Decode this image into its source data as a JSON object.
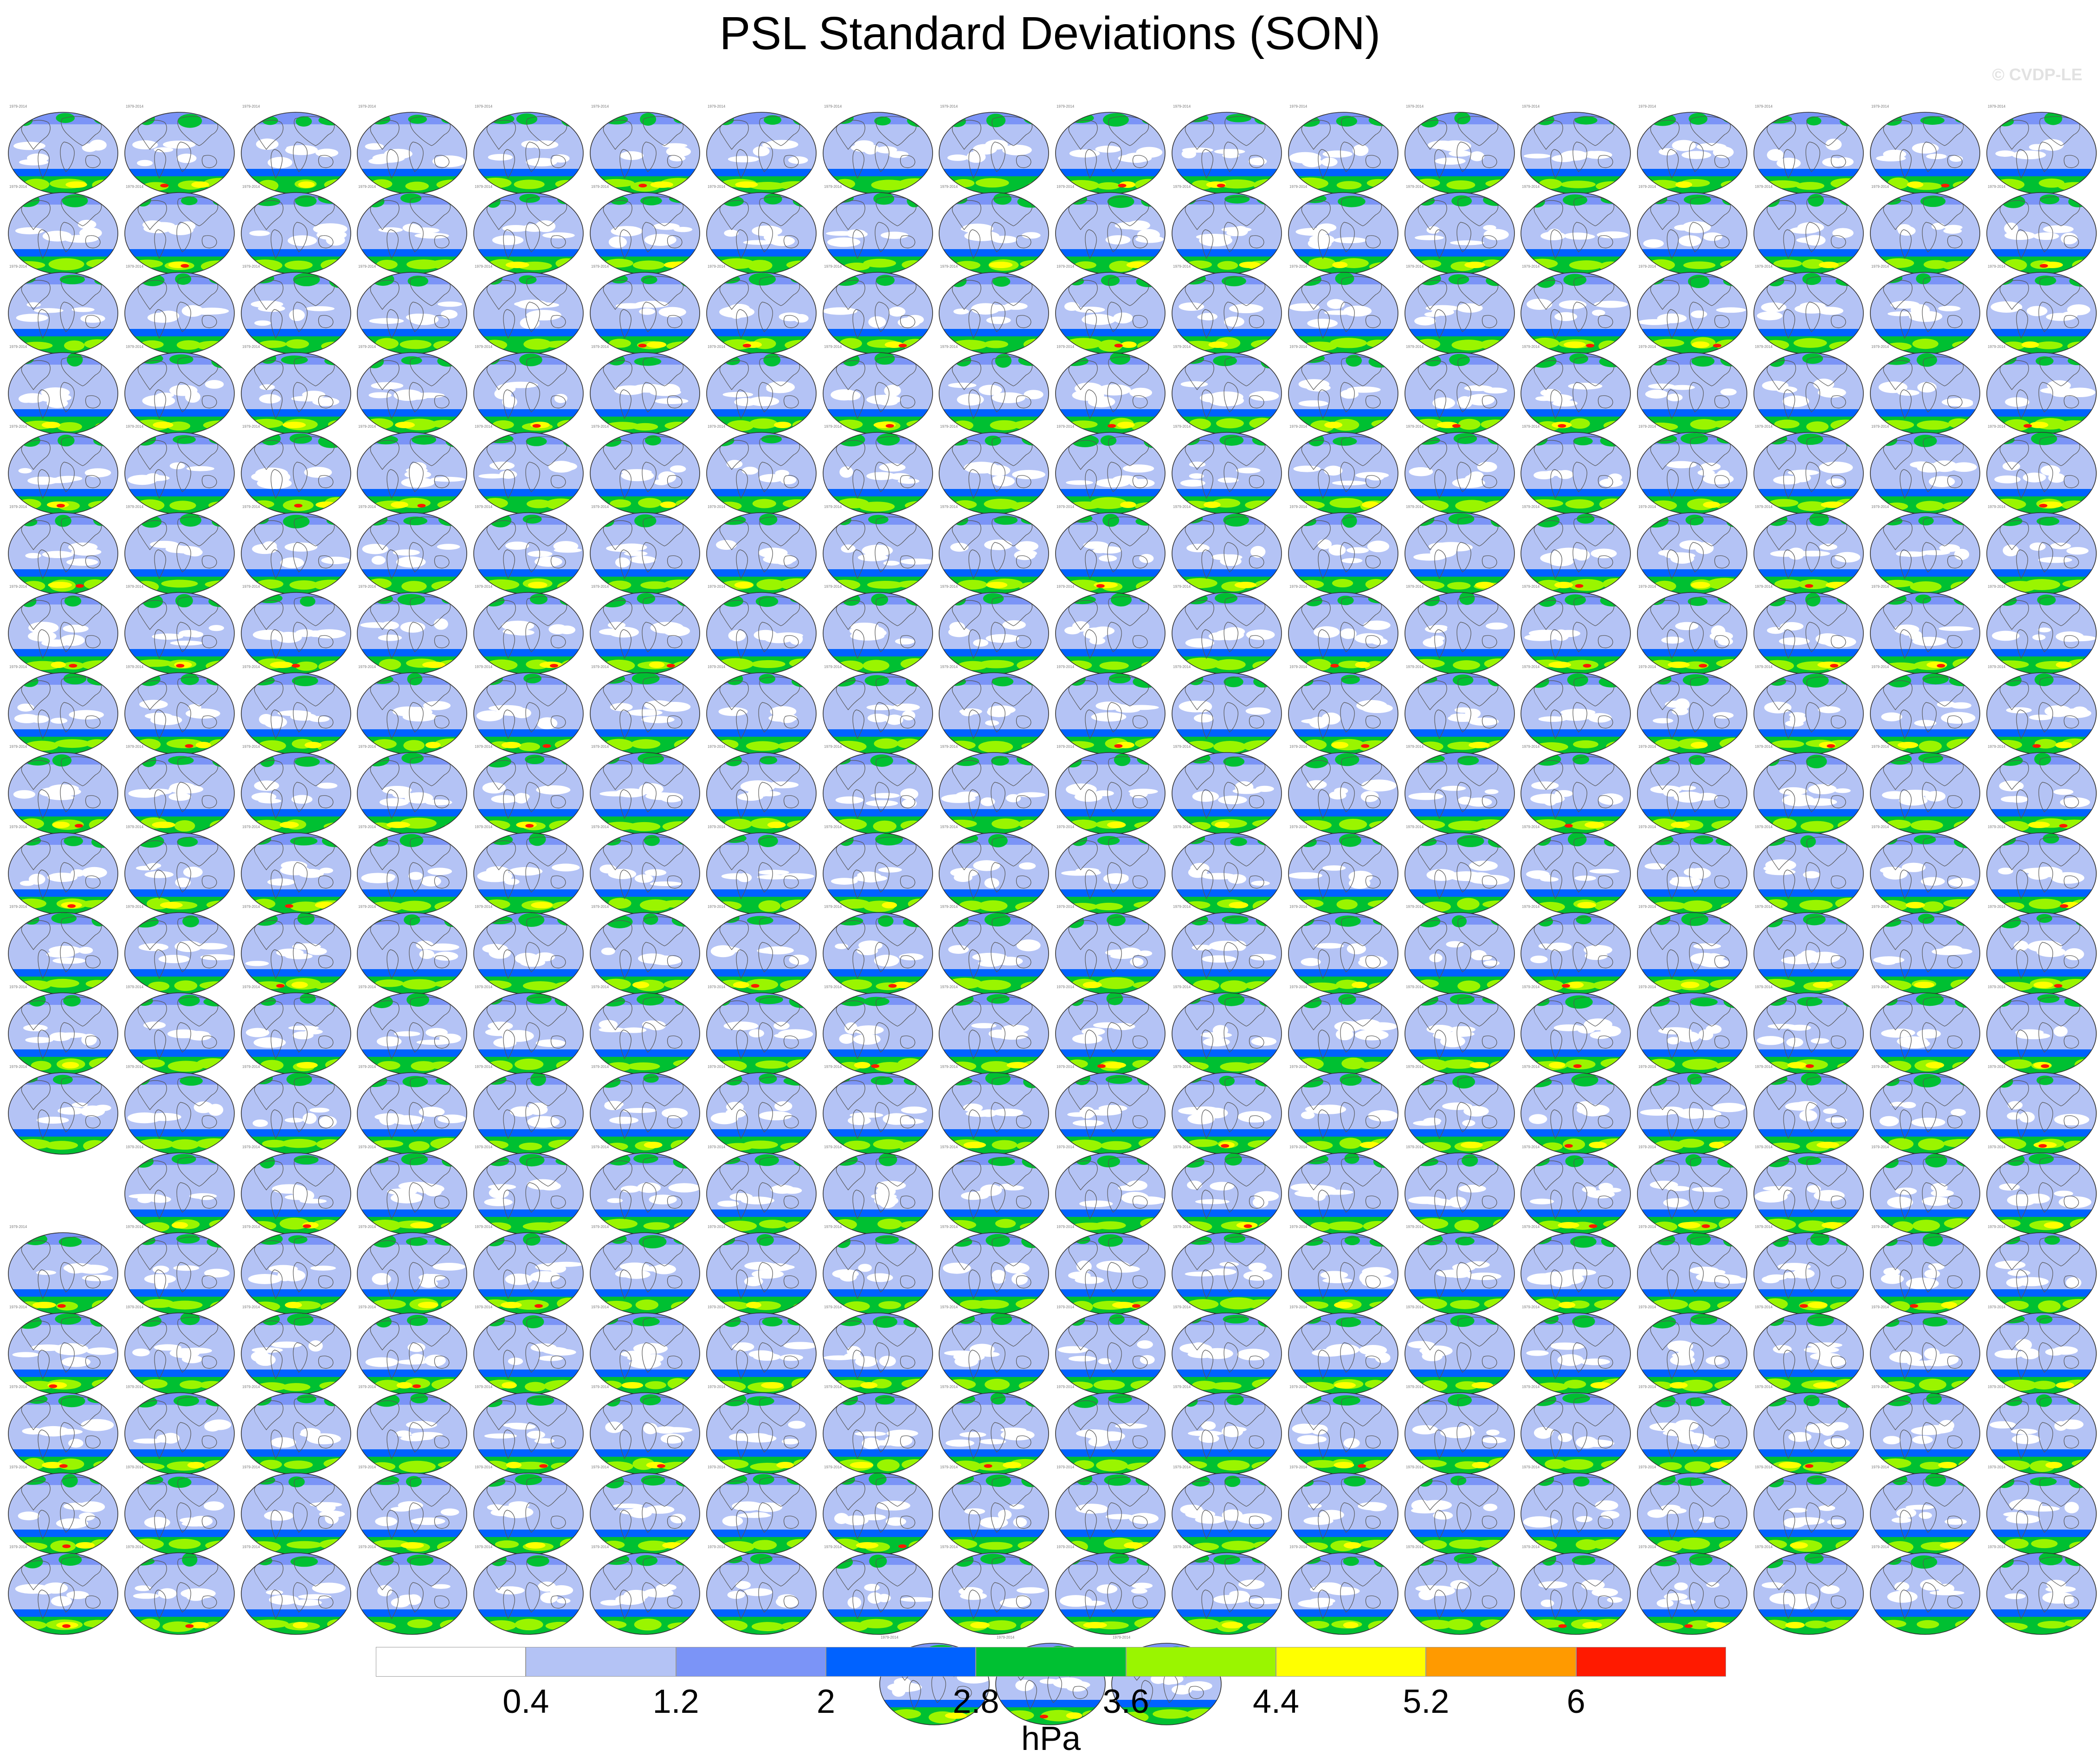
{
  "title": "PSL Standard Deviations (SON)",
  "watermark": "© CVDP-LE",
  "colorbar": {
    "units": "hPa",
    "ticks": [
      "0.4",
      "1.2",
      "2",
      "2.8",
      "3.6",
      "4.4",
      "5.2",
      "6"
    ],
    "colors": [
      "#ffffff",
      "#b4c3f5",
      "#7b94f7",
      "#0062ff",
      "#00c032",
      "#9af500",
      "#ffff00",
      "#ff9a00",
      "#ff1a00"
    ]
  },
  "panel_grid": {
    "columns": 18,
    "rows": 19,
    "panel_count": 327,
    "period_label": "1979-2014"
  },
  "colors": {
    "land_outline": "#555555",
    "panel_border": "#333333"
  }
}
